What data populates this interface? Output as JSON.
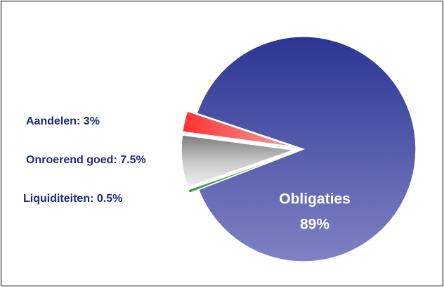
{
  "chart_data": {
    "type": "pie",
    "categories": [
      "Aandelen:",
      "Onroerend goed:",
      "Liquiditeiten:",
      "Obligaties"
    ],
    "values": [
      3,
      7.5,
      0.5,
      89
    ],
    "value_labels": [
      "3%",
      "7.5%",
      "0.5%",
      "89%"
    ],
    "colors": [
      "#e8302c",
      "#a6a6a6",
      "#4f9a4a",
      "#4a52aa"
    ]
  }
}
